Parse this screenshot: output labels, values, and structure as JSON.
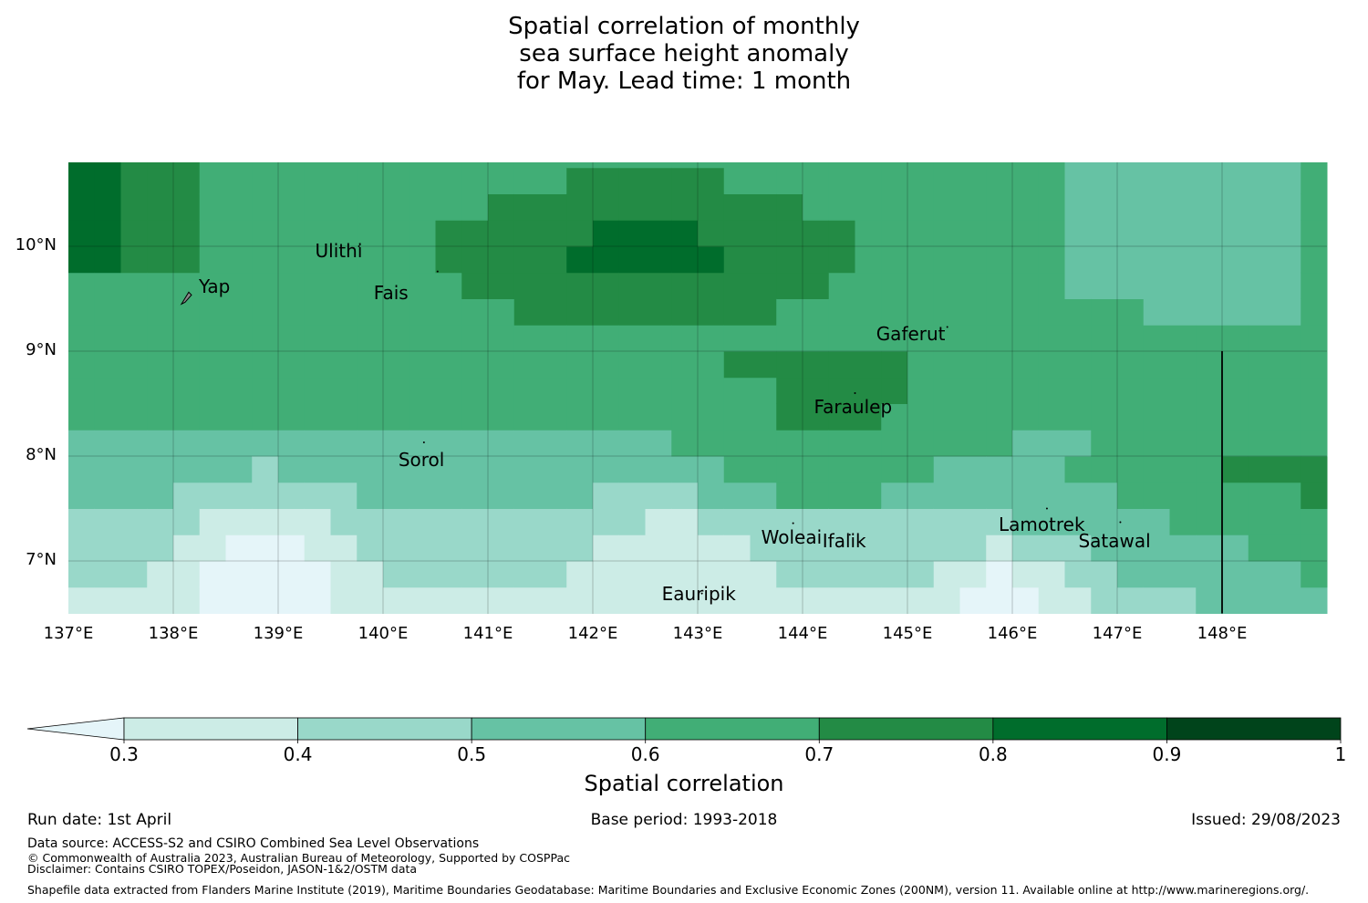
{
  "title": {
    "line1": "Spatial correlation of monthly",
    "line2": "sea surface height anomaly",
    "line3": " for May. Lead time: 1 month"
  },
  "map": {
    "lon_range": [
      137,
      149
    ],
    "lat_range": [
      6.5,
      10.8
    ],
    "x_tick_labels": [
      "137°E",
      "138°E",
      "139°E",
      "140°E",
      "141°E",
      "142°E",
      "143°E",
      "144°E",
      "145°E",
      "146°E",
      "147°E",
      "148°E"
    ],
    "y_tick_labels": [
      "10°N",
      "9°N",
      "8°N",
      "7°N"
    ],
    "islands": [
      {
        "name": "Yap",
        "lon": 138.13,
        "lat": 9.51
      },
      {
        "name": "Ulithi",
        "lon": 139.77,
        "lat": 10.0
      },
      {
        "name": "Fais",
        "lon": 140.52,
        "lat": 9.76
      },
      {
        "name": "Gaferut",
        "lon": 145.38,
        "lat": 9.23
      },
      {
        "name": "Faraulep",
        "lon": 144.5,
        "lat": 8.6
      },
      {
        "name": "Sorol",
        "lon": 140.39,
        "lat": 8.13
      },
      {
        "name": "Woleai",
        "lon": 143.91,
        "lat": 7.36
      },
      {
        "name": "Ifalik",
        "lon": 144.45,
        "lat": 7.25
      },
      {
        "name": "Lamotrek",
        "lon": 146.33,
        "lat": 7.5
      },
      {
        "name": "Satawal",
        "lon": 147.03,
        "lat": 7.37
      },
      {
        "name": "Eauripik",
        "lon": 143.04,
        "lat": 6.69
      }
    ],
    "boundary_lon": 148.0,
    "boundary_lat_range": [
      6.5,
      9.0
    ]
  },
  "colorbar": {
    "title": "Spatial correlation",
    "levels": [
      0.3,
      0.4,
      0.5,
      0.6,
      0.7,
      0.8,
      0.9,
      1.0
    ],
    "tick_labels": [
      "0.3",
      "0.4",
      "0.5",
      "0.6",
      "0.7",
      "0.8",
      "0.9",
      "1"
    ],
    "colors": [
      "#ccece6",
      "#99d8c9",
      "#66c2a4",
      "#41ae76",
      "#238b45",
      "#006d2c",
      "#00441b"
    ],
    "under_color": "#e5f5f9",
    "extend": "min"
  },
  "footer": {
    "run_date": "Run date: 1st April",
    "base_period": "Base period: 1993-2018",
    "issued": "Issued: 29/08/2023",
    "data_source": "Data source: ACCESS-S2 and CSIRO Combined Sea Level Observations",
    "copyright": "© Commonwealth of Australia 2023, Australian Bureau of Meteorology, Supported by COSPPac",
    "disclaimer": "Disclaimer: Contains CSIRO TOPEX/Poseidon, JASON-1&2/OSTM data",
    "shapefile": "Shapefile data extracted from Flanders Marine Institute (2019), Maritime Boundaries Geodatabase: Maritime Boundaries and Exclusive Economic Zones (200NM), version 11. Available online at http://www.marineregions.org/."
  }
}
